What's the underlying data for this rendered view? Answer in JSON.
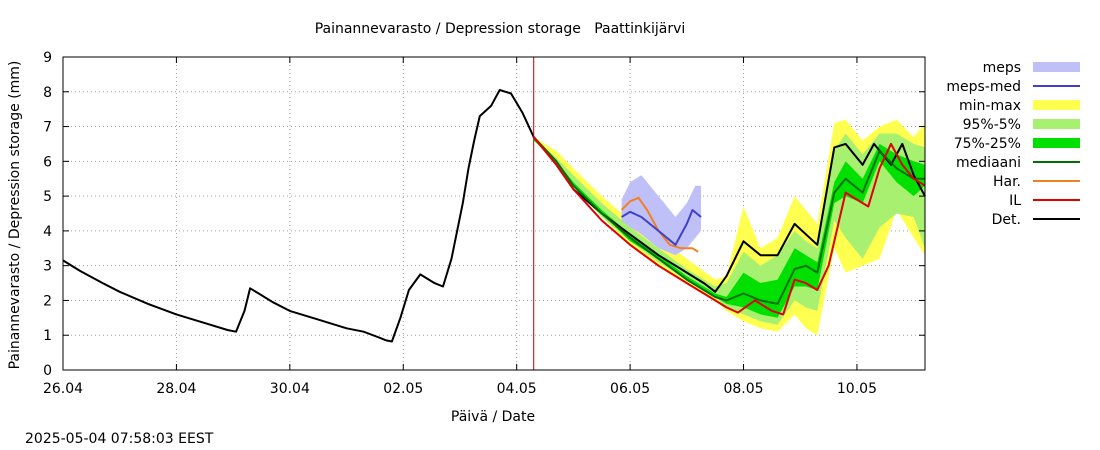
{
  "chart_data": {
    "type": "line",
    "title": "Painannevarasto / Depression storage   Paattinkijärvi",
    "xlabel": "Päivä / Date",
    "ylabel": "Painannevarasto / Depression storage (mm)",
    "timestamp": "2025-05-04 07:58:03 EEST",
    "x_unit": "days since 26.04",
    "xlim": [
      0,
      15.2
    ],
    "ylim": [
      0,
      9
    ],
    "x_ticks": [
      {
        "value": 0,
        "label": "26.04"
      },
      {
        "value": 2,
        "label": "28.04"
      },
      {
        "value": 4,
        "label": "30.04"
      },
      {
        "value": 6,
        "label": "02.05"
      },
      {
        "value": 8,
        "label": "04.05"
      },
      {
        "value": 10,
        "label": "06.05"
      },
      {
        "value": 12,
        "label": "08.05"
      },
      {
        "value": 14,
        "label": "10.05"
      }
    ],
    "y_ticks": [
      0,
      1,
      2,
      3,
      4,
      5,
      6,
      7,
      8,
      9
    ],
    "grid": true,
    "forecast_start_x": 8.3,
    "legend": [
      {
        "key": "meps",
        "label": "meps",
        "color": "#c0c0f8",
        "style": "band"
      },
      {
        "key": "meps_med",
        "label": "meps-med",
        "color": "#4040c8",
        "style": "line"
      },
      {
        "key": "minmax",
        "label": "min-max",
        "color": "#ffff50",
        "style": "band"
      },
      {
        "key": "p95_5",
        "label": "95%-5%",
        "color": "#a8f070",
        "style": "band"
      },
      {
        "key": "p75_25",
        "label": "75%-25%",
        "color": "#00e000",
        "style": "band"
      },
      {
        "key": "median",
        "label": "mediaani",
        "color": "#007000",
        "style": "line"
      },
      {
        "key": "har",
        "label": "Har.",
        "color": "#f08020",
        "style": "line"
      },
      {
        "key": "il",
        "label": "IL",
        "color": "#e00000",
        "style": "line"
      },
      {
        "key": "det",
        "label": "Det.",
        "color": "#000000",
        "style": "line"
      }
    ],
    "bands": {
      "minmax": {
        "x": [
          8.3,
          8.7,
          9.0,
          9.5,
          10.0,
          10.5,
          11.0,
          11.5,
          11.7,
          12.0,
          12.3,
          12.6,
          12.9,
          13.1,
          13.3,
          13.6,
          13.8,
          14.1,
          14.4,
          14.7,
          15.0,
          15.2
        ],
        "upper": [
          6.7,
          6.3,
          5.8,
          5.0,
          4.3,
          3.8,
          3.2,
          2.6,
          2.7,
          4.7,
          3.5,
          3.8,
          5.0,
          4.6,
          4.2,
          7.1,
          7.2,
          6.6,
          7.0,
          7.2,
          6.7,
          7.1
        ],
        "lower": [
          6.6,
          6.0,
          5.3,
          4.4,
          3.6,
          3.0,
          2.5,
          2.0,
          1.7,
          1.4,
          1.2,
          1.1,
          1.6,
          1.2,
          1.0,
          3.5,
          2.8,
          3.0,
          3.2,
          4.6,
          3.8,
          3.3
        ]
      },
      "p95_5": {
        "x": [
          8.3,
          8.7,
          9.0,
          9.5,
          10.0,
          10.5,
          11.0,
          11.5,
          11.7,
          12.0,
          12.3,
          12.6,
          12.9,
          13.1,
          13.3,
          13.6,
          13.8,
          14.1,
          14.4,
          14.7,
          15.0,
          15.2
        ],
        "upper": [
          6.7,
          6.1,
          5.6,
          4.8,
          4.1,
          3.5,
          2.9,
          2.4,
          2.5,
          3.4,
          3.0,
          3.3,
          4.0,
          3.7,
          3.5,
          6.3,
          6.8,
          6.2,
          6.8,
          6.8,
          6.5,
          6.4
        ],
        "lower": [
          6.6,
          6.0,
          5.3,
          4.4,
          3.7,
          3.1,
          2.6,
          2.1,
          1.8,
          1.6,
          1.4,
          1.3,
          2.0,
          1.8,
          1.7,
          4.3,
          3.8,
          3.2,
          4.1,
          4.5,
          4.4,
          3.5
        ]
      },
      "p75_25": {
        "x": [
          8.3,
          8.7,
          9.0,
          9.5,
          10.0,
          10.5,
          11.0,
          11.5,
          11.7,
          12.0,
          12.3,
          12.6,
          12.9,
          13.1,
          13.3,
          13.6,
          13.8,
          14.1,
          14.4,
          14.7,
          15.0,
          15.2
        ],
        "upper": [
          6.7,
          6.0,
          5.4,
          4.6,
          3.9,
          3.3,
          2.7,
          2.2,
          2.1,
          2.8,
          2.5,
          2.6,
          3.5,
          3.3,
          3.1,
          5.4,
          6.0,
          5.5,
          6.5,
          6.2,
          6.0,
          5.9
        ],
        "lower": [
          6.6,
          6.0,
          5.3,
          4.5,
          3.7,
          3.2,
          2.6,
          2.1,
          1.9,
          1.8,
          1.6,
          1.5,
          2.4,
          2.4,
          2.3,
          4.8,
          5.0,
          4.8,
          6.0,
          5.4,
          5.0,
          5.3
        ]
      },
      "meps": {
        "x": [
          9.85,
          10.0,
          10.2,
          10.5,
          10.8,
          11.0,
          11.15,
          11.25
        ],
        "upper": [
          4.9,
          5.4,
          5.6,
          5.0,
          4.4,
          4.8,
          5.3,
          5.3
        ],
        "lower": [
          4.3,
          4.1,
          3.9,
          3.5,
          3.3,
          3.5,
          3.8,
          4.0
        ]
      }
    },
    "series": [
      {
        "name": "Det.",
        "key": "det",
        "color": "#000000",
        "x": [
          0.0,
          0.3,
          0.7,
          1.0,
          1.5,
          2.0,
          2.5,
          2.9,
          3.05,
          3.2,
          3.3,
          3.45,
          3.7,
          4.0,
          4.5,
          5.0,
          5.3,
          5.55,
          5.7,
          5.8,
          5.95,
          6.1,
          6.3,
          6.55,
          6.7,
          6.85,
          7.05,
          7.15,
          7.25,
          7.35,
          7.55,
          7.7,
          7.9,
          8.1,
          8.3,
          8.7,
          9.0,
          9.5,
          10.0,
          10.5,
          11.0,
          11.3,
          11.5,
          11.7,
          12.0,
          12.3,
          12.6,
          12.9,
          13.3,
          13.6,
          13.8,
          14.1,
          14.3,
          14.6,
          14.8,
          15.0,
          15.2
        ],
        "y": [
          3.15,
          2.85,
          2.5,
          2.25,
          1.9,
          1.6,
          1.35,
          1.15,
          1.1,
          1.7,
          2.35,
          2.2,
          1.95,
          1.7,
          1.45,
          1.2,
          1.1,
          0.95,
          0.85,
          0.82,
          1.5,
          2.3,
          2.75,
          2.5,
          2.4,
          3.2,
          4.8,
          5.8,
          6.6,
          7.3,
          7.6,
          8.05,
          7.95,
          7.4,
          6.7,
          5.9,
          5.2,
          4.5,
          3.9,
          3.3,
          2.8,
          2.5,
          2.25,
          2.7,
          3.7,
          3.3,
          3.3,
          4.2,
          3.6,
          6.4,
          6.5,
          5.9,
          6.5,
          5.9,
          6.5,
          5.6,
          5.0
        ]
      },
      {
        "name": "mediaani",
        "key": "median",
        "color": "#007000",
        "x": [
          8.3,
          8.7,
          9.0,
          9.5,
          10.0,
          10.5,
          11.0,
          11.5,
          11.7,
          12.0,
          12.3,
          12.6,
          12.9,
          13.1,
          13.3,
          13.6,
          13.8,
          14.1,
          14.4,
          14.7,
          15.0,
          15.2
        ],
        "y": [
          6.7,
          6.0,
          5.3,
          4.5,
          3.8,
          3.2,
          2.6,
          2.1,
          2.0,
          2.2,
          2.0,
          1.9,
          2.9,
          3.0,
          2.8,
          5.1,
          5.5,
          5.1,
          6.3,
          5.8,
          5.5,
          5.5
        ]
      },
      {
        "name": "IL",
        "key": "il",
        "color": "#e00000",
        "x": [
          8.3,
          8.7,
          9.0,
          9.5,
          10.0,
          10.5,
          11.0,
          11.5,
          11.7,
          11.9,
          12.2,
          12.5,
          12.7,
          12.9,
          13.1,
          13.3,
          13.5,
          13.8,
          14.0,
          14.2,
          14.4,
          14.6,
          14.8,
          15.0,
          15.2
        ],
        "y": [
          6.7,
          5.9,
          5.2,
          4.3,
          3.6,
          3.0,
          2.5,
          2.0,
          1.8,
          1.65,
          2.0,
          1.7,
          1.6,
          2.6,
          2.5,
          2.3,
          3.0,
          5.1,
          4.9,
          4.7,
          5.8,
          6.5,
          5.9,
          5.5,
          5.3
        ]
      },
      {
        "name": "Har.",
        "key": "har",
        "color": "#f08020",
        "x": [
          9.85,
          10.0,
          10.15,
          10.3,
          10.5,
          10.7,
          10.9,
          11.1,
          11.2
        ],
        "y": [
          4.6,
          4.85,
          4.95,
          4.6,
          4.0,
          3.6,
          3.5,
          3.5,
          3.4
        ]
      },
      {
        "name": "meps-med",
        "key": "meps_med",
        "color": "#4040c8",
        "x": [
          9.85,
          10.0,
          10.2,
          10.5,
          10.8,
          11.0,
          11.1,
          11.25
        ],
        "y": [
          4.4,
          4.55,
          4.4,
          4.0,
          3.6,
          4.2,
          4.6,
          4.4
        ]
      }
    ]
  }
}
